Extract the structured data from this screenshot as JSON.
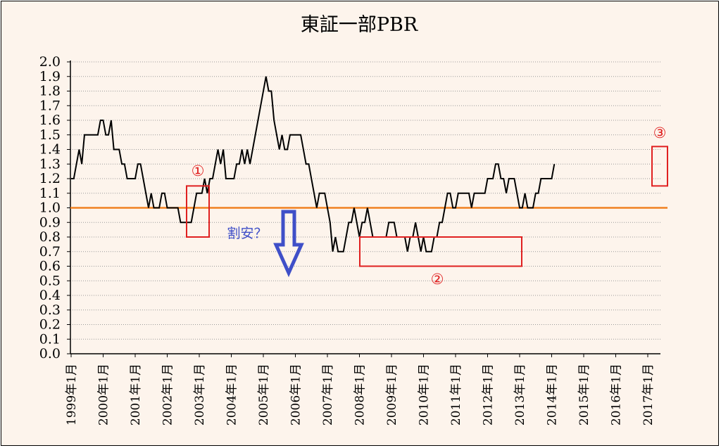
{
  "chart_data": {
    "type": "line",
    "title": "東証一部PBR",
    "ylim": [
      0,
      2.0
    ],
    "yticks": [
      "0.0",
      "0.1",
      "0.2",
      "0.3",
      "0.4",
      "0.5",
      "0.6",
      "0.7",
      "0.8",
      "0.9",
      "1.0",
      "1.1",
      "1.2",
      "1.3",
      "1.4",
      "1.5",
      "1.6",
      "1.7",
      "1.8",
      "1.9",
      "2.0"
    ],
    "xticks": [
      "1999年1月",
      "2000年1月",
      "2001年1月",
      "2002年1月",
      "2003年1月",
      "2004年1月",
      "2005年1月",
      "2006年1月",
      "2007年1月",
      "2008年1月",
      "2009年1月",
      "2010年1月",
      "2011年1月",
      "2012年1月",
      "2013年1月",
      "2014年1月",
      "2015年1月",
      "2016年1月",
      "2017年1月"
    ],
    "grid": "horizontal-dotted",
    "series": [
      {
        "name": "",
        "color": "#000000",
        "values": [
          1.2,
          1.2,
          1.3,
          1.4,
          1.3,
          1.5,
          1.5,
          1.5,
          1.5,
          1.5,
          1.5,
          1.6,
          1.6,
          1.5,
          1.5,
          1.6,
          1.4,
          1.4,
          1.4,
          1.3,
          1.3,
          1.2,
          1.2,
          1.2,
          1.2,
          1.3,
          1.3,
          1.2,
          1.1,
          1.0,
          1.1,
          1.0,
          1.0,
          1.0,
          1.1,
          1.1,
          1.0,
          1.0,
          1.0,
          1.0,
          1.0,
          0.9,
          0.9,
          0.9,
          0.9,
          0.9,
          1.0,
          1.1,
          1.1,
          1.1,
          1.2,
          1.1,
          1.2,
          1.2,
          1.3,
          1.4,
          1.3,
          1.4,
          1.2,
          1.2,
          1.2,
          1.2,
          1.3,
          1.3,
          1.4,
          1.3,
          1.4,
          1.3,
          1.4,
          1.5,
          1.6,
          1.7,
          1.8,
          1.9,
          1.8,
          1.8,
          1.6,
          1.5,
          1.4,
          1.5,
          1.4,
          1.4,
          1.5,
          1.5,
          1.5,
          1.5,
          1.5,
          1.4,
          1.3,
          1.3,
          1.2,
          1.1,
          1.0,
          1.1,
          1.1,
          1.1,
          1.0,
          0.9,
          0.7,
          0.8,
          0.7,
          0.7,
          0.7,
          0.8,
          0.9,
          0.9,
          1.0,
          0.9,
          0.8,
          0.9,
          0.9,
          1.0,
          0.9,
          0.8,
          0.8,
          0.8,
          0.8,
          0.8,
          0.8,
          0.9,
          0.9,
          0.9,
          0.8,
          0.8,
          0.8,
          0.8,
          0.7,
          0.8,
          0.8,
          0.9,
          0.8,
          0.7,
          0.8,
          0.7,
          0.7,
          0.7,
          0.8,
          0.8,
          0.9,
          0.9,
          1.0,
          1.1,
          1.1,
          1.0,
          1.0,
          1.1,
          1.1,
          1.1,
          1.1,
          1.1,
          1.0,
          1.1,
          1.1,
          1.1,
          1.1,
          1.1,
          1.2,
          1.2,
          1.2,
          1.3,
          1.3,
          1.2,
          1.2,
          1.1,
          1.2,
          1.2,
          1.2,
          1.1,
          1.0,
          1.0,
          1.1,
          1.0,
          1.0,
          1.0,
          1.1,
          1.1,
          1.2,
          1.2,
          1.2,
          1.2,
          1.2,
          1.3
        ]
      },
      {
        "name": "",
        "color": "#f08020",
        "reference_value": 1.0
      }
    ],
    "annotations": [
      {
        "label": "①",
        "x_range": [
          "2002年10月",
          "2003年6月"
        ],
        "y_range": [
          0.8,
          1.15
        ],
        "color": "#e02020"
      },
      {
        "label": "②",
        "x_range": [
          "2008年3月",
          "2013年3月"
        ],
        "y_range": [
          0.6,
          0.8
        ],
        "color": "#e02020"
      },
      {
        "label": "③",
        "x_range": [
          "2017年6月",
          "2017年12月"
        ],
        "y_range": [
          1.15,
          1.42
        ],
        "color": "#e02020"
      },
      {
        "label": "割安？",
        "color": "#3f4fc8",
        "arrow": "down"
      }
    ]
  }
}
